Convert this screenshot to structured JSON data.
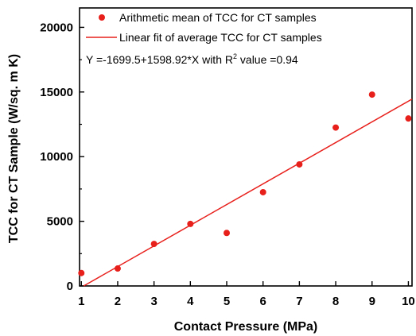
{
  "chart_data": {
    "type": "scatter",
    "xlabel": "Contact Pressure (MPa)",
    "ylabel": "TCC for CT Sample (W/sq. m K)",
    "xlim": [
      0.95,
      10.1
    ],
    "ylim": [
      0,
      21500
    ],
    "xticks": [
      1,
      2,
      3,
      4,
      5,
      6,
      7,
      8,
      9,
      10
    ],
    "yticks": [
      0,
      5000,
      10000,
      15000,
      20000
    ],
    "grid": false,
    "legend_position": "top-left",
    "series": [
      {
        "name": "Arithmetic mean of TCC for CT samples",
        "kind": "scatter",
        "color": "#e8201c",
        "x": [
          1,
          2,
          3,
          4,
          5,
          6,
          7,
          8,
          9,
          10
        ],
        "y": [
          1000,
          1350,
          3250,
          4800,
          4100,
          7250,
          9400,
          12250,
          14800,
          12950
        ]
      },
      {
        "name": "Linear fit of average TCC for CT samples",
        "kind": "line",
        "color": "#e8201c",
        "intercept": -1699.5,
        "slope": 1598.92,
        "x": [
          1.063,
          10.1
        ]
      }
    ],
    "annotation": {
      "text": "Y =-1699.5+1598.92*X with R",
      "superscript": "2",
      "suffix": " value =0.94"
    }
  }
}
